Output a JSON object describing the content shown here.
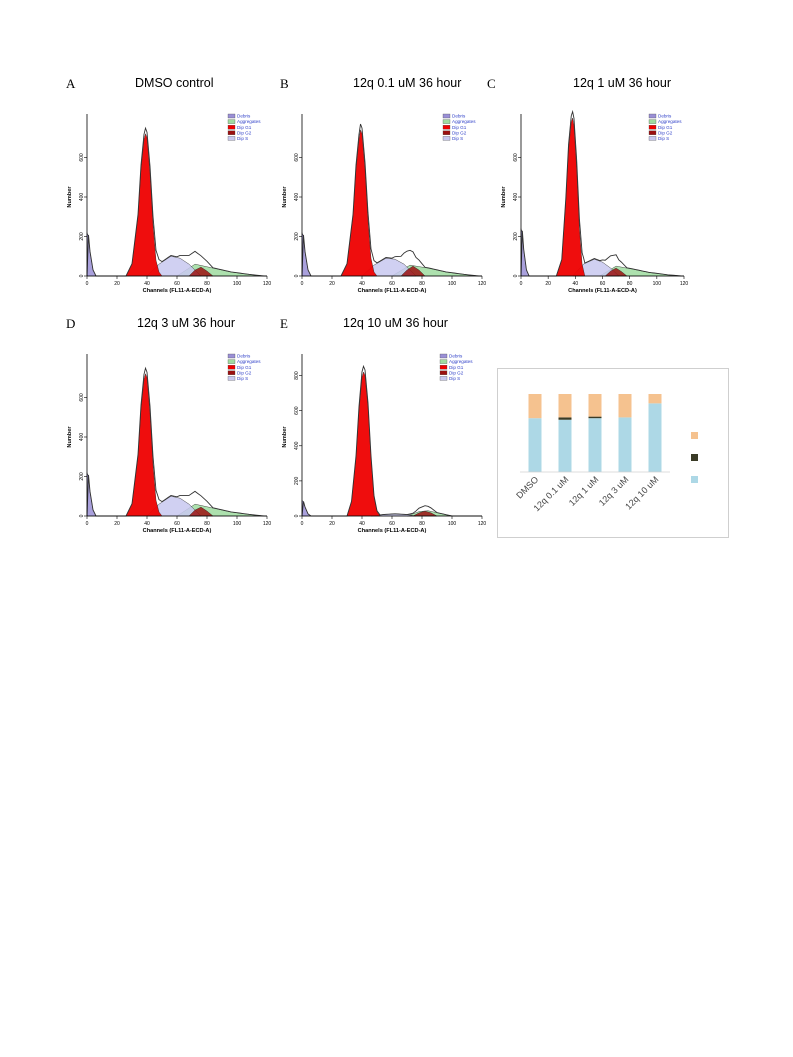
{
  "panels": [
    {
      "letter": "A",
      "title": "DMSO control"
    },
    {
      "letter": "B",
      "title": "12q 0.1 uM 36 hour"
    },
    {
      "letter": "C",
      "title": "12q 1 uM 36 hour"
    },
    {
      "letter": "D",
      "title": "12q 3 uM 36 hour"
    },
    {
      "letter": "E",
      "title": "12q 10 uM 36 hour"
    }
  ],
  "histogram_common": {
    "xlabel": "Channels (FL11-A-ECD-A)",
    "ylabel": "Number",
    "xticks": [
      "0",
      "20",
      "40",
      "60",
      "80",
      "100",
      "120"
    ],
    "yticks": [
      "0",
      "200",
      "400",
      "600"
    ],
    "legend": [
      "Debris",
      "Aggregates",
      "Dip G1",
      "Dip G2",
      "Dip S"
    ],
    "colors": {
      "Debris": "#9a8fd6",
      "Aggregates": "#9fdca0",
      "Dip G1": "#ee0000",
      "Dip G2": "#9b1010",
      "Dip S": "#c8c8f0",
      "legend_text": "#2e3fc8"
    }
  },
  "histogram_e_yticks": [
    "0",
    "200",
    "400",
    "600",
    "800"
  ],
  "bar_colors": [
    "#add8e6",
    "#3a3b26",
    "#f5c28f"
  ],
  "chart_data": [
    {
      "type": "area",
      "title": "DMSO control",
      "xlabel": "Channels (FL11-A-ECD-A)",
      "ylabel": "Number",
      "xlim": [
        0,
        120
      ],
      "ylim": [
        0,
        800
      ],
      "series": [
        {
          "name": "Dip G1",
          "x": [
            26,
            30,
            34,
            36,
            38,
            39,
            40,
            42,
            44,
            46,
            48,
            50
          ],
          "y": [
            0,
            60,
            300,
            540,
            690,
            720,
            700,
            520,
            260,
            80,
            20,
            0
          ]
        },
        {
          "name": "Dip S",
          "x": [
            40,
            48,
            56,
            62,
            68,
            72,
            76
          ],
          "y": [
            0,
            60,
            100,
            90,
            60,
            30,
            0
          ]
        },
        {
          "name": "Dip G2",
          "x": [
            68,
            72,
            76,
            80,
            84
          ],
          "y": [
            0,
            30,
            45,
            25,
            0
          ]
        },
        {
          "name": "Aggregates",
          "x": [
            60,
            72,
            84,
            96,
            108,
            118
          ],
          "y": [
            0,
            60,
            40,
            20,
            8,
            0
          ]
        },
        {
          "name": "Debris",
          "x": [
            0,
            1,
            2,
            4,
            6
          ],
          "y": [
            220,
            200,
            120,
            30,
            0
          ]
        }
      ]
    },
    {
      "type": "area",
      "title": "12q 0.1 uM 36 hour",
      "xlabel": "Channels (FL11-A-ECD-A)",
      "ylabel": "Number",
      "xlim": [
        0,
        120
      ],
      "ylim": [
        0,
        800
      ],
      "series": [
        {
          "name": "Dip G1",
          "x": [
            26,
            30,
            34,
            36,
            38,
            39,
            40,
            42,
            44,
            46,
            48,
            50
          ],
          "y": [
            0,
            60,
            300,
            540,
            690,
            740,
            720,
            540,
            280,
            90,
            20,
            0
          ]
        },
        {
          "name": "Dip S",
          "x": [
            40,
            48,
            56,
            62,
            68,
            72,
            76
          ],
          "y": [
            0,
            55,
            90,
            85,
            60,
            30,
            0
          ]
        },
        {
          "name": "Dip G2",
          "x": [
            66,
            70,
            74,
            78,
            82
          ],
          "y": [
            0,
            30,
            50,
            30,
            0
          ]
        },
        {
          "name": "Aggregates",
          "x": [
            60,
            72,
            84,
            96,
            108,
            118
          ],
          "y": [
            0,
            55,
            40,
            20,
            8,
            0
          ]
        },
        {
          "name": "Debris",
          "x": [
            0,
            1,
            2,
            4,
            6
          ],
          "y": [
            220,
            200,
            120,
            30,
            0
          ]
        }
      ]
    },
    {
      "type": "area",
      "title": "12q 1 uM 36 hour",
      "xlabel": "Channels (FL11-A-ECD-A)",
      "ylabel": "Number",
      "xlim": [
        0,
        120
      ],
      "ylim": [
        0,
        800
      ],
      "series": [
        {
          "name": "Dip G1",
          "x": [
            26,
            30,
            33,
            35,
            37,
            38,
            39,
            41,
            43,
            45,
            47
          ],
          "y": [
            0,
            80,
            380,
            640,
            780,
            800,
            760,
            540,
            240,
            60,
            0
          ]
        },
        {
          "name": "Dip S",
          "x": [
            38,
            46,
            54,
            60,
            66,
            72
          ],
          "y": [
            0,
            60,
            85,
            70,
            40,
            0
          ]
        },
        {
          "name": "Dip G2",
          "x": [
            62,
            66,
            70,
            74,
            78
          ],
          "y": [
            0,
            25,
            40,
            22,
            0
          ]
        },
        {
          "name": "Aggregates",
          "x": [
            58,
            70,
            82,
            94,
            108,
            118
          ],
          "y": [
            0,
            50,
            35,
            18,
            6,
            0
          ]
        },
        {
          "name": "Debris",
          "x": [
            0,
            1,
            2,
            4,
            6
          ],
          "y": [
            240,
            220,
            130,
            30,
            0
          ]
        }
      ]
    },
    {
      "type": "area",
      "title": "12q 3 uM 36 hour",
      "xlabel": "Channels (FL11-A-ECD-A)",
      "ylabel": "Number",
      "xlim": [
        0,
        120
      ],
      "ylim": [
        0,
        800
      ],
      "series": [
        {
          "name": "Dip G1",
          "x": [
            26,
            30,
            34,
            36,
            38,
            39,
            40,
            42,
            44,
            46,
            48,
            50
          ],
          "y": [
            0,
            60,
            300,
            540,
            690,
            720,
            700,
            520,
            260,
            80,
            20,
            0
          ]
        },
        {
          "name": "Dip S",
          "x": [
            40,
            48,
            56,
            62,
            68,
            72,
            76
          ],
          "y": [
            0,
            60,
            100,
            90,
            60,
            30,
            0
          ]
        },
        {
          "name": "Dip G2",
          "x": [
            68,
            72,
            76,
            80,
            84
          ],
          "y": [
            0,
            30,
            45,
            25,
            0
          ]
        },
        {
          "name": "Aggregates",
          "x": [
            60,
            72,
            84,
            96,
            108,
            118
          ],
          "y": [
            0,
            60,
            40,
            20,
            8,
            0
          ]
        },
        {
          "name": "Debris",
          "x": [
            0,
            1,
            2,
            4,
            6
          ],
          "y": [
            220,
            200,
            120,
            30,
            0
          ]
        }
      ]
    },
    {
      "type": "area",
      "title": "12q 10 uM 36 hour",
      "xlabel": "Channels (FL11-A-ECD-A)",
      "ylabel": "Number",
      "xlim": [
        0,
        120
      ],
      "ylim": [
        0,
        900
      ],
      "series": [
        {
          "name": "Dip G1",
          "x": [
            30,
            33,
            36,
            38,
            40,
            41,
            42,
            44,
            46,
            48,
            50,
            52
          ],
          "y": [
            0,
            80,
            330,
            600,
            790,
            820,
            800,
            620,
            330,
            110,
            25,
            0
          ]
        },
        {
          "name": "Dip S",
          "x": [
            46,
            54,
            62,
            70,
            76
          ],
          "y": [
            0,
            8,
            12,
            8,
            0
          ]
        },
        {
          "name": "Dip G2",
          "x": [
            74,
            78,
            82,
            86,
            90
          ],
          "y": [
            0,
            18,
            28,
            18,
            0
          ]
        },
        {
          "name": "Aggregates",
          "x": [
            70,
            78,
            84,
            92,
            100
          ],
          "y": [
            0,
            25,
            30,
            15,
            0
          ]
        },
        {
          "name": "Debris",
          "x": [
            0,
            1,
            2,
            4,
            6
          ],
          "y": [
            90,
            80,
            50,
            12,
            0
          ]
        }
      ]
    },
    {
      "type": "bar",
      "stacked": true,
      "categories": [
        "DMSO",
        "12q 0.1 uM",
        "12q 1 uM",
        "12q 3 uM",
        "12q 10 uM"
      ],
      "series": [
        {
          "values": [
            0.69,
            0.67,
            0.69,
            0.7,
            0.88
          ]
        },
        {
          "values": [
            0.0,
            0.03,
            0.02,
            0.0,
            0.0
          ]
        },
        {
          "values": [
            0.31,
            0.3,
            0.29,
            0.3,
            0.12
          ]
        }
      ],
      "ylim": [
        0,
        1
      ]
    }
  ]
}
